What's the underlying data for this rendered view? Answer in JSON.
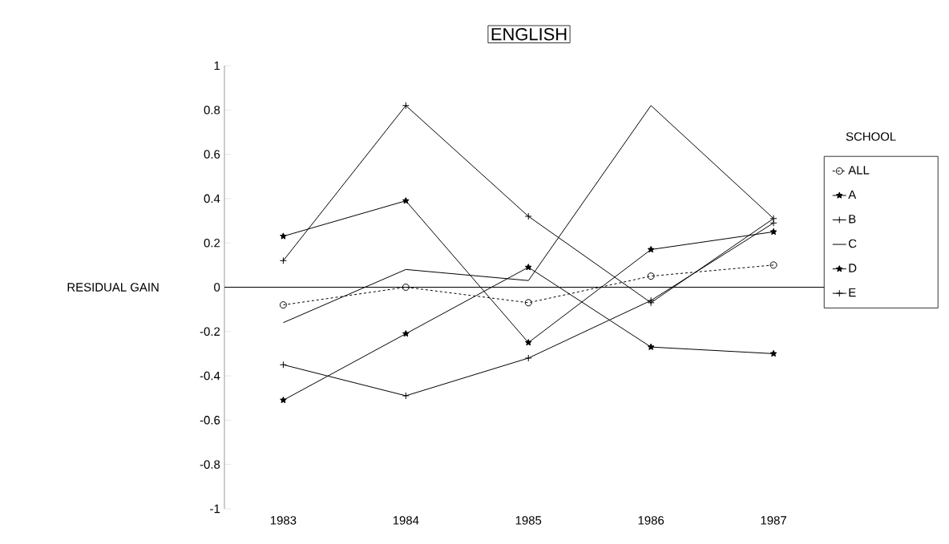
{
  "chart_data": {
    "type": "line",
    "title": "ENGLISH",
    "ylabel": "RESIDUAL GAIN",
    "legend_title": "SCHOOL",
    "legend": "right",
    "categories": [
      "1983",
      "1984",
      "1985",
      "1986",
      "1987"
    ],
    "ylim": [
      -1,
      1
    ],
    "yticks": [
      -1,
      -0.8,
      -0.6,
      -0.4,
      -0.2,
      0,
      0.2,
      0.4,
      0.6,
      0.8,
      1
    ],
    "ref_lines": [
      {
        "axis": "y",
        "value": 0
      }
    ],
    "series": [
      {
        "name": "ALL",
        "color": "#000000",
        "marker": "circle",
        "line_style": "dashed",
        "values": [
          -0.08,
          0,
          -0.07,
          0.05,
          0.1
        ]
      },
      {
        "name": "A",
        "color": "#000000",
        "marker": "star",
        "line_style": "solid",
        "values": [
          0.23,
          0.39,
          -0.25,
          0.17,
          0.25
        ]
      },
      {
        "name": "B",
        "color": "#000000",
        "marker": "cross",
        "line_style": "solid",
        "values": [
          0.12,
          0.82,
          0.32,
          -0.07,
          0.31
        ]
      },
      {
        "name": "C",
        "color": "#000000",
        "marker": "none",
        "line_style": "solid",
        "values": [
          -0.16,
          0.08,
          0.03,
          0.82,
          0.31
        ]
      },
      {
        "name": "D",
        "color": "#000000",
        "marker": "star",
        "line_style": "solid",
        "values": [
          -0.51,
          -0.21,
          0.09,
          -0.27,
          -0.3
        ]
      },
      {
        "name": "E",
        "color": "#000000",
        "marker": "cross",
        "line_style": "solid",
        "values": [
          -0.35,
          -0.49,
          -0.32,
          -0.06,
          0.29
        ]
      }
    ]
  }
}
